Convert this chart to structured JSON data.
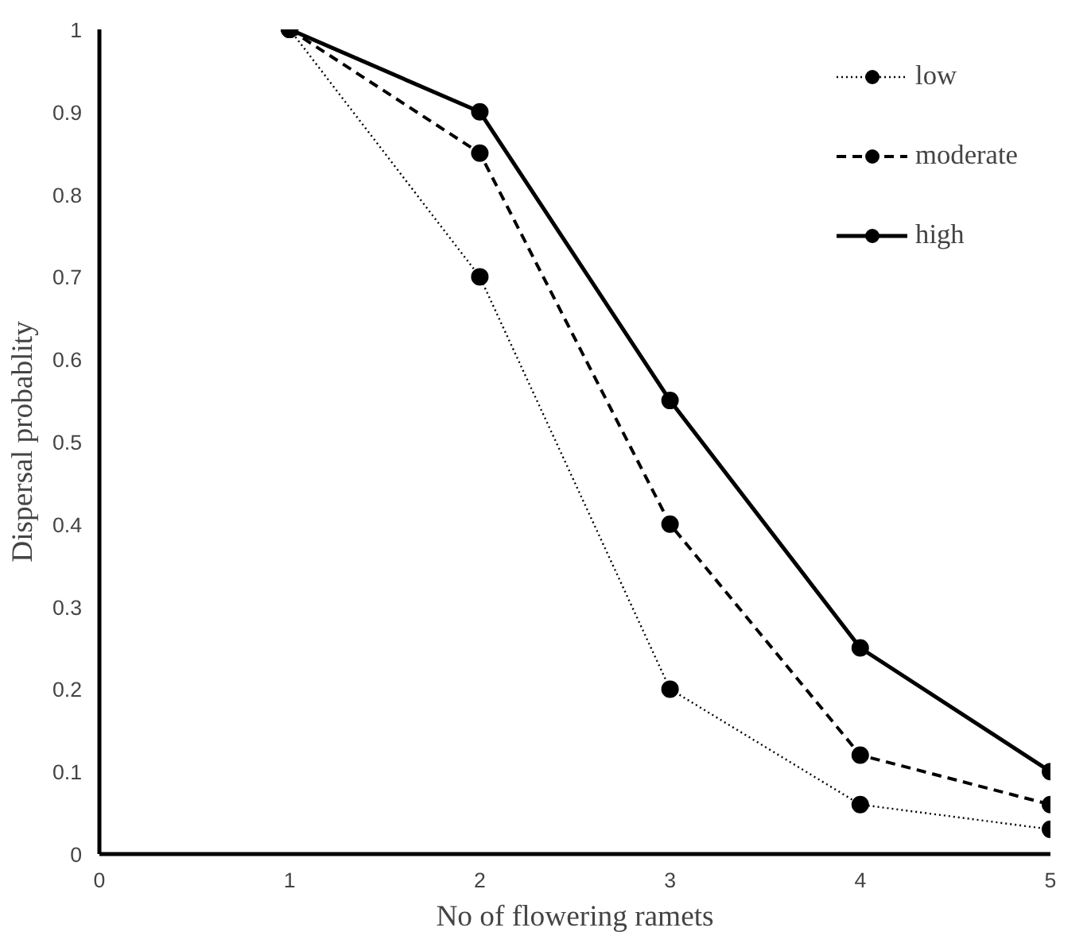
{
  "chart_data": {
    "type": "line",
    "xlabel": "No of flowering ramets",
    "ylabel": "Dispersal probablity",
    "x": [
      1,
      2,
      3,
      4,
      5
    ],
    "series": [
      {
        "name": "low",
        "color": "#000000",
        "line_style": "dotted",
        "values": [
          1,
          0.7,
          0.2,
          0.06,
          0.03
        ]
      },
      {
        "name": "moderate",
        "color": "#000000",
        "line_style": "dashed",
        "values": [
          1,
          0.85,
          0.4,
          0.12,
          0.06
        ]
      },
      {
        "name": "high",
        "color": "#000000",
        "line_style": "solid",
        "values": [
          1,
          0.9,
          0.55,
          0.25,
          0.1
        ]
      }
    ],
    "xlim": [
      0,
      5
    ],
    "ylim": [
      0,
      1
    ],
    "xticks": [
      0,
      1,
      2,
      3,
      4,
      5
    ],
    "yticks": [
      0,
      {
        "value": 0.1,
        "label": "0.1"
      },
      {
        "value": 0.2,
        "label": "0.2"
      },
      {
        "value": 0.3,
        "label": "0.3"
      },
      {
        "value": 0.4,
        "label": "0.4"
      },
      {
        "value": 0.5,
        "label": "0.5"
      },
      {
        "value": 0.6,
        "label": "0.6"
      },
      {
        "value": 0.7,
        "label": "0.7"
      },
      {
        "value": 0.8,
        "label": "0.8"
      },
      {
        "value": 0.9,
        "label": "0.9"
      },
      1
    ],
    "grid": false,
    "legend": "top right",
    "marker": "circle"
  }
}
